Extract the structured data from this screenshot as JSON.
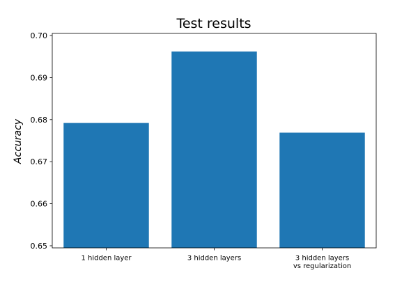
{
  "chart_data": {
    "type": "bar",
    "title": "Test results",
    "xlabel": "",
    "ylabel": "Accuracy",
    "categories": [
      [
        "1 hidden layer"
      ],
      [
        "3 hidden layers"
      ],
      [
        "3 hidden layers",
        "vs regularization"
      ]
    ],
    "values": [
      0.6792,
      0.6962,
      0.6769
    ],
    "ylim": [
      0.6495,
      0.7005
    ],
    "yticks": [
      0.65,
      0.66,
      0.67,
      0.68,
      0.69,
      0.7
    ],
    "ytick_labels": [
      "0.65",
      "0.66",
      "0.67",
      "0.68",
      "0.69",
      "0.70"
    ],
    "bar_color": "#1f77b4",
    "grid": false,
    "legend": "none"
  }
}
